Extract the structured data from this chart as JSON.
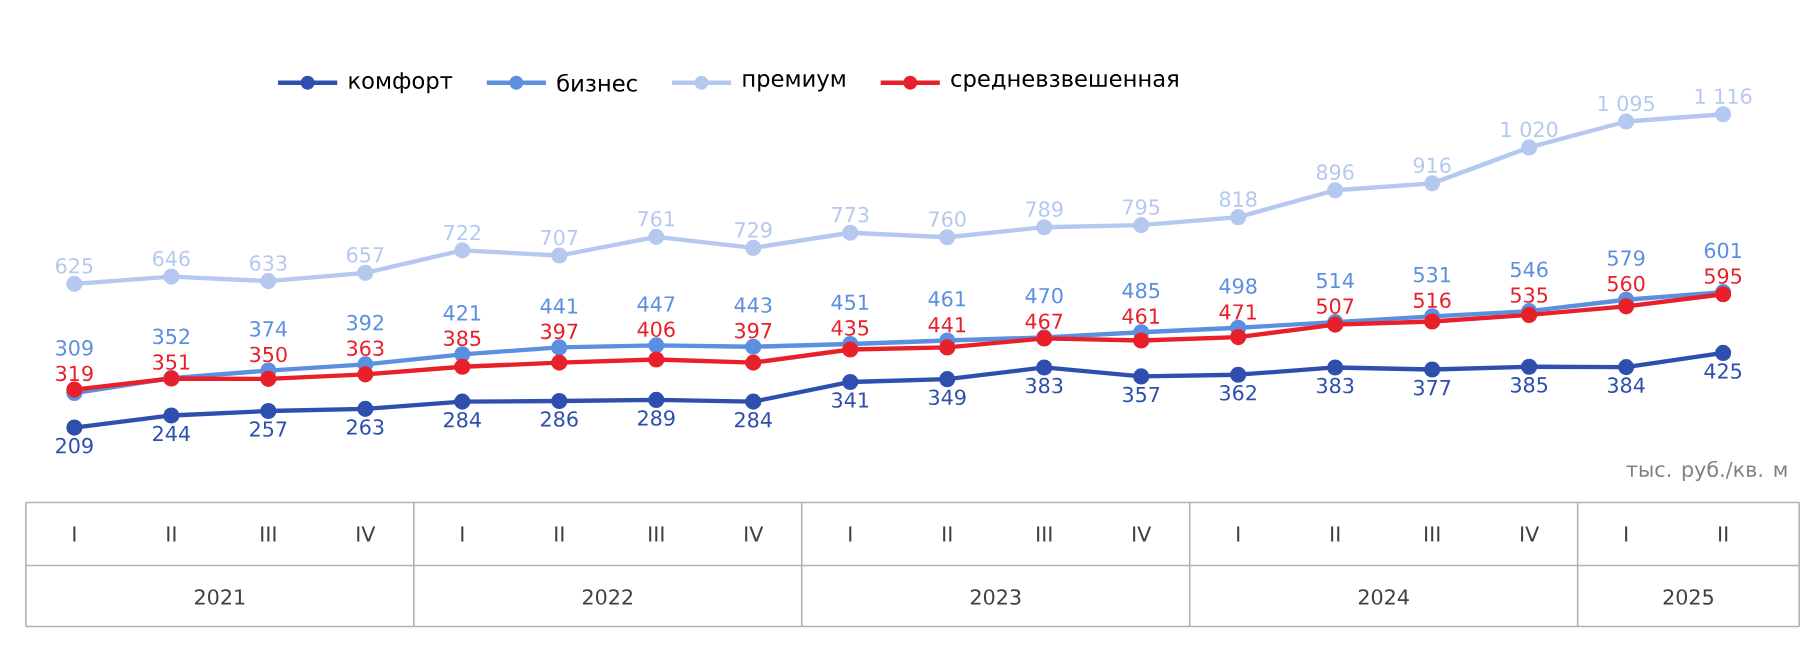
{
  "chart_data": {
    "type": "line",
    "categories": [
      "I",
      "II",
      "III",
      "IV",
      "I",
      "II",
      "III",
      "IV",
      "I",
      "II",
      "III",
      "IV",
      "I",
      "II",
      "III",
      "IV",
      "I",
      "II"
    ],
    "annotations": [
      "тыс. руб./кв. м",
      "2021",
      "2022",
      "2023",
      "2024",
      "2025"
    ],
    "legend": "top",
    "marker": "circle",
    "series": [
      {
        "name": "комфорт",
        "color": "#2e4fae",
        "values": [
          209,
          244,
          257,
          263,
          284,
          286,
          289,
          284,
          341,
          349,
          383,
          357,
          362,
          383,
          377,
          385,
          384,
          425
        ],
        "value_labels": [
          "209",
          "244",
          "257",
          "263",
          "284",
          "286",
          "289",
          "284",
          "341",
          "349",
          "383",
          "357",
          "362",
          "383",
          "377",
          "385",
          "384",
          "425"
        ]
      },
      {
        "name": "бизнес",
        "color": "#5b8fe0",
        "values": [
          309,
          352,
          374,
          392,
          421,
          441,
          447,
          443,
          451,
          461,
          470,
          485,
          498,
          514,
          531,
          546,
          579,
          601
        ],
        "value_labels": [
          "309",
          "352",
          "374",
          "392",
          "421",
          "441",
          "447",
          "443",
          "451",
          "461",
          "470",
          "485",
          "498",
          "514",
          "531",
          "546",
          "579",
          "601"
        ]
      },
      {
        "name": "премиум",
        "color": "#b4c8f0",
        "values": [
          625,
          646,
          633,
          657,
          722,
          707,
          761,
          729,
          773,
          760,
          789,
          795,
          818,
          896,
          916,
          1020,
          1095,
          1116
        ],
        "value_labels": [
          "625",
          "646",
          "633",
          "657",
          "722",
          "707",
          "761",
          "729",
          "773",
          "760",
          "789",
          "795",
          "818",
          "896",
          "916",
          "1 020",
          "1 095",
          "1 116"
        ]
      },
      {
        "name": "средневзвешенная",
        "color": "#e8202a",
        "values": [
          319,
          351,
          350,
          363,
          385,
          397,
          406,
          397,
          435,
          441,
          467,
          461,
          471,
          507,
          516,
          535,
          560,
          595
        ],
        "value_labels": [
          "319",
          "351",
          "350",
          "363",
          "385",
          "397",
          "406",
          "397",
          "435",
          "441",
          "467",
          "461",
          "471",
          "507",
          "516",
          "535",
          "560",
          "595"
        ]
      }
    ]
  }
}
